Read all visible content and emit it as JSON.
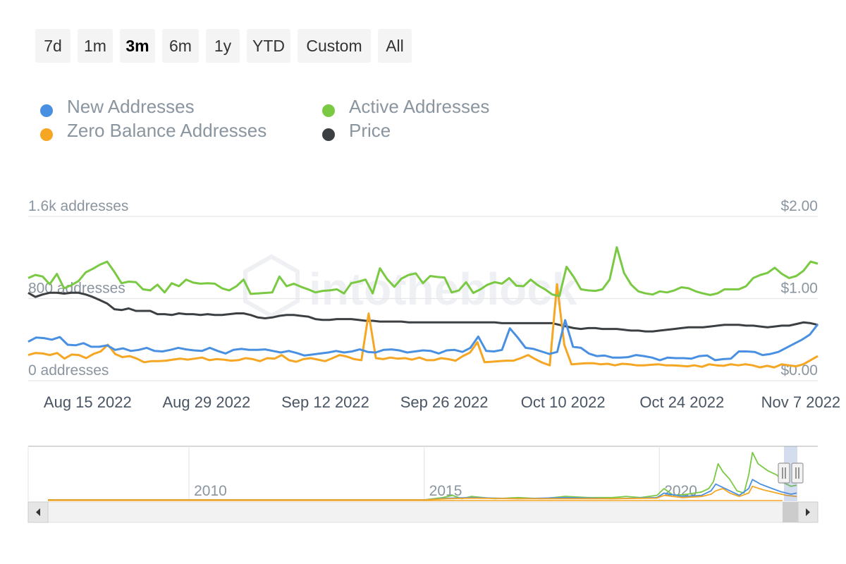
{
  "range_selector": {
    "buttons": [
      {
        "label": "7d",
        "selected": false
      },
      {
        "label": "1m",
        "selected": false
      },
      {
        "label": "3m",
        "selected": true
      },
      {
        "label": "6m",
        "selected": false
      },
      {
        "label": "1y",
        "selected": false
      },
      {
        "label": "YTD",
        "selected": false
      },
      {
        "label": "Custom",
        "selected": false
      },
      {
        "label": "All",
        "selected": false
      }
    ]
  },
  "legend": [
    {
      "label": "New Addresses",
      "color": "#4a90e2"
    },
    {
      "label": "Active Addresses",
      "color": "#7ac943"
    },
    {
      "label": "Zero Balance Addresses",
      "color": "#f5a623"
    },
    {
      "label": "Price",
      "color": "#3d4043"
    }
  ],
  "chart_data": {
    "type": "line",
    "title": "",
    "watermark": "intotheblock",
    "grid": true,
    "x_range": [
      "2022-08-08",
      "2022-11-09"
    ],
    "x_ticks": [
      {
        "date": "2022-08-15",
        "label": "Aug 15 2022"
      },
      {
        "date": "2022-08-29",
        "label": "Aug 29 2022"
      },
      {
        "date": "2022-09-12",
        "label": "Sep 12 2022"
      },
      {
        "date": "2022-09-26",
        "label": "Sep 26 2022"
      },
      {
        "date": "2022-10-10",
        "label": "Oct 10 2022"
      },
      {
        "date": "2022-10-24",
        "label": "Oct 24 2022"
      },
      {
        "date": "2022-11-07",
        "label": "Nov 7 2022"
      }
    ],
    "y_left": {
      "min": 0,
      "max": 1600,
      "ticks": [
        {
          "value": 0,
          "label": "0 addresses"
        },
        {
          "value": 800,
          "label": "800 addresses"
        },
        {
          "value": 1600,
          "label": "1.6k addresses"
        }
      ]
    },
    "y_right": {
      "min": 0,
      "max": 2,
      "ticks": [
        {
          "value": 0,
          "label": "$0.00"
        },
        {
          "value": 1,
          "label": "$1.00"
        },
        {
          "value": 2,
          "label": "$2.00"
        }
      ]
    },
    "series": [
      {
        "key": "new",
        "axis": "left",
        "color": "#4a90e2",
        "start": "2022-08-08",
        "values": [
          380,
          420,
          415,
          400,
          425,
          350,
          345,
          365,
          330,
          330,
          345,
          300,
          315,
          290,
          300,
          320,
          290,
          285,
          300,
          320,
          305,
          295,
          290,
          320,
          290,
          265,
          300,
          310,
          300,
          300,
          305,
          290,
          275,
          290,
          270,
          245,
          255,
          265,
          275,
          290,
          275,
          285,
          305,
          280,
          275,
          300,
          305,
          295,
          275,
          285,
          295,
          290,
          265,
          295,
          300,
          280,
          320,
          430,
          290,
          285,
          300,
          510,
          420,
          320,
          310,
          285,
          260,
          280,
          590,
          330,
          320,
          265,
          240,
          245,
          225,
          225,
          230,
          250,
          240,
          225,
          200,
          225,
          220,
          220,
          215,
          240,
          245,
          200,
          210,
          215,
          285,
          285,
          280,
          250,
          260,
          280,
          320,
          360,
          400,
          450,
          550
        ]
      },
      {
        "key": "active",
        "axis": "left",
        "color": "#7ac943",
        "start": "2022-08-08",
        "values": [
          1000,
          1030,
          1015,
          940,
          1040,
          900,
          930,
          970,
          1055,
          1090,
          1130,
          1160,
          1060,
          950,
          965,
          960,
          890,
          880,
          935,
          860,
          950,
          920,
          985,
          955,
          945,
          950,
          945,
          900,
          880,
          920,
          985,
          845,
          850,
          855,
          860,
          1015,
          920,
          945,
          915,
          890,
          860,
          875,
          880,
          890,
          850,
          950,
          965,
          985,
          850,
          1095,
          990,
          915,
          995,
          1030,
          1045,
          950,
          1020,
          1010,
          1005,
          860,
          880,
          960,
          855,
          890,
          935,
          960,
          945,
          1000,
          925,
          920,
          985,
          930,
          890,
          840,
          825,
          1110,
          1010,
          890,
          880,
          875,
          890,
          985,
          1300,
          1050,
          935,
          870,
          850,
          840,
          870,
          860,
          880,
          910,
          900,
          870,
          850,
          835,
          850,
          890,
          890,
          890,
          920,
          1000,
          1030,
          1050,
          1100,
          1040,
          1000,
          1020,
          1070,
          1160,
          1140
        ]
      },
      {
        "key": "zero",
        "axis": "left",
        "color": "#f5a623",
        "start": "2022-08-08",
        "values": [
          250,
          270,
          265,
          250,
          270,
          215,
          255,
          250,
          220,
          260,
          285,
          350,
          260,
          230,
          240,
          215,
          180,
          190,
          190,
          195,
          205,
          215,
          205,
          215,
          225,
          200,
          210,
          205,
          195,
          200,
          220,
          210,
          190,
          220,
          215,
          250,
          200,
          185,
          210,
          220,
          205,
          190,
          220,
          250,
          235,
          210,
          200,
          655,
          220,
          210,
          225,
          215,
          220,
          205,
          225,
          200,
          200,
          220,
          210,
          195,
          240,
          275,
          375,
          180,
          185,
          190,
          195,
          195,
          220,
          250,
          210,
          175,
          150,
          940,
          350,
          160,
          165,
          170,
          170,
          160,
          165,
          150,
          165,
          160,
          150,
          150,
          155,
          160,
          150,
          150,
          145,
          140,
          150,
          135,
          160,
          150,
          145,
          160,
          150,
          160,
          150,
          130,
          145,
          130,
          160,
          150,
          140,
          160,
          200,
          240
        ]
      },
      {
        "key": "price",
        "axis": "right",
        "color": "#3d4043",
        "start": "2022-08-08",
        "values": [
          1.07,
          1.02,
          1.05,
          1.07,
          1.07,
          1.06,
          1.07,
          1.07,
          1.05,
          1.02,
          0.98,
          0.94,
          0.87,
          0.86,
          0.88,
          0.85,
          0.85,
          0.85,
          0.81,
          0.81,
          0.8,
          0.82,
          0.81,
          0.81,
          0.8,
          0.81,
          0.8,
          0.8,
          0.81,
          0.82,
          0.82,
          0.8,
          0.77,
          0.76,
          0.77,
          0.79,
          0.8,
          0.8,
          0.79,
          0.78,
          0.75,
          0.74,
          0.74,
          0.75,
          0.75,
          0.75,
          0.74,
          0.73,
          0.73,
          0.72,
          0.72,
          0.72,
          0.72,
          0.71,
          0.71,
          0.71,
          0.71,
          0.71,
          0.71,
          0.71,
          0.71,
          0.71,
          0.71,
          0.71,
          0.71,
          0.71,
          0.7,
          0.7,
          0.7,
          0.7,
          0.7,
          0.7,
          0.7,
          0.7,
          0.68,
          0.66,
          0.64,
          0.63,
          0.64,
          0.64,
          0.63,
          0.63,
          0.63,
          0.62,
          0.61,
          0.61,
          0.6,
          0.6,
          0.61,
          0.62,
          0.63,
          0.64,
          0.65,
          0.65,
          0.65,
          0.66,
          0.67,
          0.68,
          0.68,
          0.68,
          0.67,
          0.67,
          0.66,
          0.65,
          0.66,
          0.67,
          0.67,
          0.69,
          0.71,
          0.7,
          0.68
        ]
      }
    ]
  },
  "navigator": {
    "x_range": [
      2007.0,
      2022.92
    ],
    "year_labels": [
      {
        "year": 2010,
        "label": "2010"
      },
      {
        "year": 2015,
        "label": "2015"
      },
      {
        "year": 2020,
        "label": "2020"
      }
    ],
    "series": [
      {
        "key": "active",
        "color": "#7ac943",
        "points": [
          [
            2007.0,
            0
          ],
          [
            2015.0,
            0
          ],
          [
            2015.4,
            2
          ],
          [
            2015.6,
            4
          ],
          [
            2015.8,
            1
          ],
          [
            2016.0,
            3
          ],
          [
            2016.5,
            1
          ],
          [
            2017.0,
            2
          ],
          [
            2017.5,
            1
          ],
          [
            2018.0,
            3
          ],
          [
            2018.5,
            2
          ],
          [
            2019.0,
            2
          ],
          [
            2019.3,
            3
          ],
          [
            2019.6,
            2
          ],
          [
            2019.95,
            4
          ],
          [
            2020.1,
            10
          ],
          [
            2020.3,
            4
          ],
          [
            2020.6,
            5
          ],
          [
            2020.9,
            7
          ],
          [
            2021.05,
            10
          ],
          [
            2021.15,
            16
          ],
          [
            2021.25,
            32
          ],
          [
            2021.35,
            25
          ],
          [
            2021.5,
            18
          ],
          [
            2021.65,
            8
          ],
          [
            2021.8,
            6
          ],
          [
            2021.9,
            22
          ],
          [
            2021.98,
            42
          ],
          [
            2022.1,
            32
          ],
          [
            2022.3,
            26
          ],
          [
            2022.5,
            22
          ],
          [
            2022.65,
            15
          ],
          [
            2022.8,
            12
          ],
          [
            2022.92,
            13
          ]
        ]
      },
      {
        "key": "new",
        "color": "#4a90e2",
        "points": [
          [
            2007.0,
            0
          ],
          [
            2015.0,
            0
          ],
          [
            2015.5,
            1.5
          ],
          [
            2016.0,
            2
          ],
          [
            2017.0,
            1
          ],
          [
            2018.0,
            2
          ],
          [
            2019.0,
            1
          ],
          [
            2019.95,
            2
          ],
          [
            2020.1,
            6
          ],
          [
            2020.5,
            3
          ],
          [
            2020.9,
            4
          ],
          [
            2021.1,
            8
          ],
          [
            2021.2,
            14
          ],
          [
            2021.3,
            12
          ],
          [
            2021.5,
            8
          ],
          [
            2021.7,
            4
          ],
          [
            2021.9,
            10
          ],
          [
            2021.98,
            18
          ],
          [
            2022.15,
            14
          ],
          [
            2022.4,
            10
          ],
          [
            2022.6,
            7
          ],
          [
            2022.8,
            5
          ],
          [
            2022.92,
            6
          ]
        ]
      },
      {
        "key": "zero",
        "color": "#f5a623",
        "points": [
          [
            2007.0,
            0
          ],
          [
            2015.0,
            0
          ],
          [
            2015.5,
            1
          ],
          [
            2016.0,
            1.5
          ],
          [
            2017.0,
            1
          ],
          [
            2018.0,
            1
          ],
          [
            2019.0,
            1
          ],
          [
            2019.95,
            1.5
          ],
          [
            2020.1,
            4
          ],
          [
            2020.5,
            2
          ],
          [
            2020.9,
            3
          ],
          [
            2021.1,
            5
          ],
          [
            2021.2,
            8
          ],
          [
            2021.35,
            10
          ],
          [
            2021.5,
            6
          ],
          [
            2021.7,
            3
          ],
          [
            2021.9,
            6
          ],
          [
            2021.98,
            12
          ],
          [
            2022.2,
            9
          ],
          [
            2022.5,
            6
          ],
          [
            2022.7,
            4
          ],
          [
            2022.92,
            3
          ]
        ]
      }
    ]
  }
}
